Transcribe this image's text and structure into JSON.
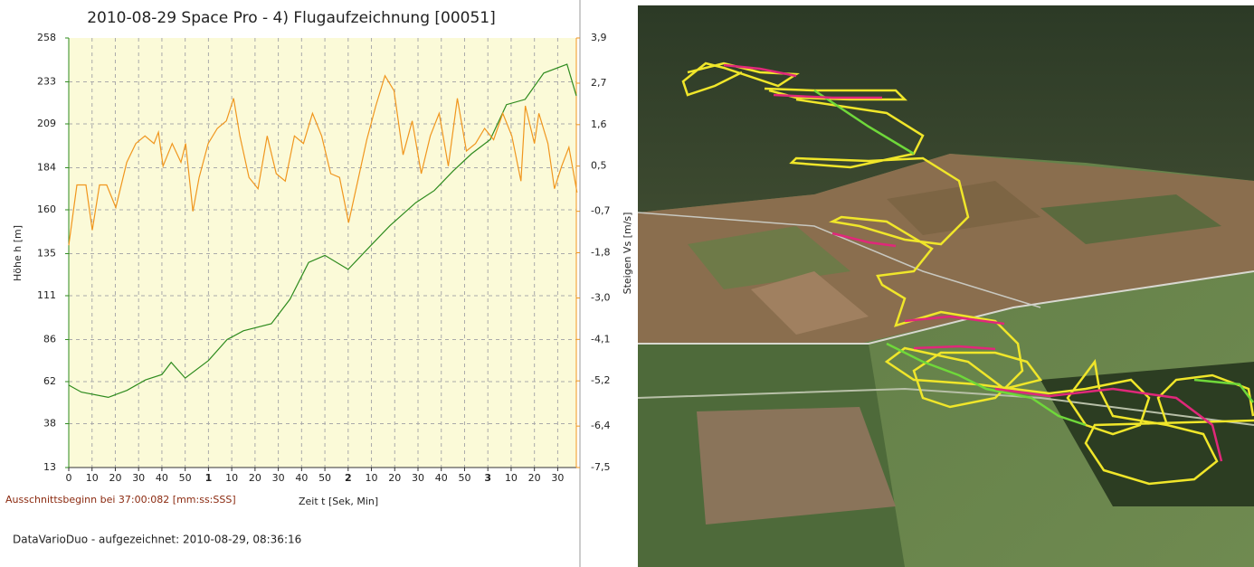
{
  "chart_data": {
    "type": "line",
    "title": "2010-08-29 Space Pro - 4) Flugaufzeichnung [00051]",
    "y_label": "Höhe  h  [m]",
    "y2_label": "Steigen  Vs  [m/s]",
    "x_label": "Zeit  t  [Sek, Min]",
    "annotation": "Ausschnittsbeginn bei 37:00:082 [mm:ss:SSS]",
    "footer": "DataVarioDuo - aufgezeichnet: 2010-08-29, 08:36:16",
    "grid": true,
    "xlim": [
      0,
      218
    ],
    "xticks": [
      0,
      10,
      20,
      30,
      40,
      50,
      {
        "value": 60,
        "label": "1"
      },
      {
        "value": 70,
        "label": "10"
      },
      {
        "value": 80,
        "label": "20"
      },
      {
        "value": 90,
        "label": "30"
      },
      {
        "value": 100,
        "label": "40"
      },
      {
        "value": 110,
        "label": "50"
      },
      {
        "value": 120,
        "label": "2"
      },
      {
        "value": 130,
        "label": "10"
      },
      {
        "value": 140,
        "label": "20"
      },
      {
        "value": 150,
        "label": "30"
      },
      {
        "value": 160,
        "label": "40"
      },
      {
        "value": 170,
        "label": "50"
      },
      {
        "value": 180,
        "label": "3"
      },
      {
        "value": 190,
        "label": "10"
      },
      {
        "value": 200,
        "label": "20"
      },
      {
        "value": 210,
        "label": "30"
      }
    ],
    "ylim": [
      13,
      258
    ],
    "yticks": [
      13,
      38,
      62,
      86,
      111,
      135,
      160,
      184,
      209,
      233,
      258
    ],
    "y2lim": [
      -7.5,
      3.9
    ],
    "y2ticks": [
      {
        "value": -7.5,
        "label": "-7,5"
      },
      {
        "value": -6.4,
        "label": "-6,4"
      },
      {
        "value": -5.2,
        "label": "-5,2"
      },
      {
        "value": -4.1,
        "label": "-4,1"
      },
      {
        "value": -3.0,
        "label": "-3,0"
      },
      {
        "value": -1.8,
        "label": "-1,8"
      },
      {
        "value": -0.7,
        "label": "-0,7"
      },
      {
        "value": 0.5,
        "label": "0,5"
      },
      {
        "value": 1.6,
        "label": "1,6"
      },
      {
        "value": 2.7,
        "label": "2,7"
      },
      {
        "value": 3.9,
        "label": "3,9"
      }
    ],
    "series": [
      {
        "color": "#2e8b1e",
        "x": [
          0,
          5.4,
          17,
          25,
          33,
          40,
          44,
          50,
          60,
          68,
          75,
          87,
          95,
          103,
          110,
          120,
          130,
          138,
          149,
          157,
          165,
          173,
          181,
          188,
          196,
          204,
          214,
          218
        ],
        "values": [
          60,
          56,
          53,
          57,
          63,
          66,
          73,
          64,
          74,
          86,
          91,
          95,
          109,
          130,
          134,
          126,
          140,
          151,
          164,
          171,
          182,
          192,
          200,
          220,
          223,
          238,
          243,
          225
        ]
      },
      {
        "color": "#f0961e",
        "axis": "y2",
        "x": [
          0,
          3.5,
          7.4,
          10.1,
          13.2,
          16.3,
          20.2,
          24.9,
          28.8,
          32.7,
          36.6,
          38.5,
          40.5,
          44.4,
          48.2,
          50.2,
          53.3,
          56.0,
          59.9,
          63.8,
          67.7,
          70.8,
          73.5,
          77.4,
          81.3,
          85.2,
          89.1,
          93.0,
          96.9,
          100.8,
          104.7,
          108.6,
          112.5,
          116.3,
          120.2,
          124.1,
          128.0,
          131.9,
          135.8,
          139.7,
          143.6,
          147.5,
          151.4,
          155.3,
          159.1,
          163.0,
          166.9,
          170.8,
          174.7,
          178.6,
          182.5,
          186.4,
          190.3,
          194.2,
          196.1,
          200.0,
          201.9,
          205.8,
          208.6,
          211.7,
          214.8,
          218.3
        ],
        "values": [
          -1.6,
          0.0,
          0.0,
          -1.2,
          0.0,
          0.0,
          -0.6,
          0.6,
          1.1,
          1.3,
          1.1,
          1.4,
          0.5,
          1.1,
          0.6,
          1.1,
          -0.7,
          0.2,
          1.1,
          1.5,
          1.7,
          2.3,
          1.3,
          0.2,
          -0.1,
          1.3,
          0.3,
          0.1,
          1.3,
          1.1,
          1.9,
          1.3,
          0.3,
          0.2,
          -1.0,
          0.1,
          1.2,
          2.1,
          2.9,
          2.5,
          0.8,
          1.7,
          0.3,
          1.3,
          1.9,
          0.5,
          2.3,
          0.9,
          1.1,
          1.5,
          1.2,
          1.9,
          1.3,
          0.1,
          2.1,
          1.1,
          1.9,
          1.1,
          -0.1,
          0.5,
          1.0,
          -0.2
        ]
      }
    ]
  }
}
